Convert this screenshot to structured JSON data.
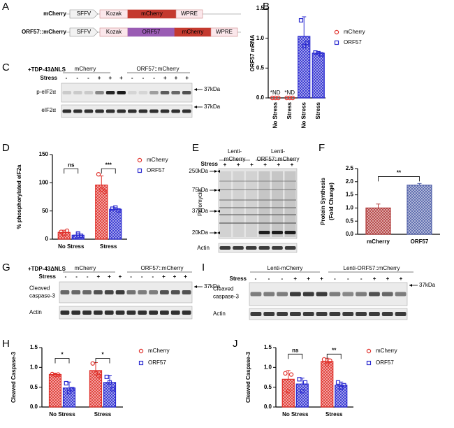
{
  "panel_A": {
    "label": "A",
    "constructs": [
      {
        "name": "mCherry",
        "elements": [
          "SFFV",
          "Kozak",
          "mCherry",
          "WPRE"
        ]
      },
      {
        "name": "ORF57::mCherry",
        "elements": [
          "SFFV",
          "Kozak",
          "ORF57",
          "mCherry",
          "WPRE"
        ]
      }
    ]
  },
  "panel_C": {
    "label": "C",
    "treatment": "+TDP-43ΔNLS",
    "stress_label": "Stress",
    "groups": [
      "mCherry",
      "ORF57::mCherry"
    ],
    "lanes": [
      "-",
      "-",
      "-",
      "+",
      "+",
      "+",
      "-",
      "-",
      "-",
      "+",
      "+",
      "+"
    ],
    "rows": [
      [
        "p-eIF2α"
      ],
      [
        "eIF2α"
      ]
    ],
    "markers": [
      "37kDa",
      "37kDa"
    ]
  },
  "panel_E": {
    "label": "E",
    "groups": [
      [
        "Lenti-",
        "mCherry"
      ],
      [
        "Lenti-",
        "ORF57::mCherry"
      ]
    ],
    "stress_label": "Stress",
    "lanes": [
      "+",
      "+",
      "+",
      "+",
      "+",
      "+"
    ],
    "ylabel": "Puromycin",
    "markers": [
      "250kDa",
      "75kDa",
      "37kDa",
      "20kDa"
    ],
    "rows": [
      [
        "Actin"
      ]
    ]
  },
  "panel_G": {
    "label": "G",
    "treatment": "+TDP-43ΔNLS",
    "stress_label": "Stress",
    "groups": [
      "mCherry",
      "ORF57::mCherry"
    ],
    "lanes": [
      "-",
      "-",
      "-",
      "+",
      "+",
      "+",
      "-",
      "-",
      "-",
      "+",
      "+",
      "+"
    ],
    "rows": [
      [
        "Cleaved",
        "caspase-3"
      ],
      [
        "Actin"
      ]
    ],
    "markers": [
      "37kDa"
    ]
  },
  "panel_I": {
    "label": "I",
    "stress_label": "Stress",
    "groups": [
      "Lenti-mCherry",
      "Lenti-ORF57::mCherry"
    ],
    "lanes": [
      "-",
      "-",
      "-",
      "+",
      "+",
      "+",
      "-",
      "-",
      "-",
      "+",
      "+",
      "+"
    ],
    "rows": [
      [
        "Cleaved",
        "caspase-3"
      ],
      [
        "Actin"
      ]
    ],
    "markers": [
      "37kDa"
    ]
  },
  "chart_data": [
    {
      "panel": "B",
      "type": "bar",
      "ylabel": "ORF57 mRNA",
      "ylim": [
        0,
        1.5
      ],
      "yticks": [
        {
          "value": 0,
          "label": "0.0"
        },
        0.5,
        {
          "value": 1,
          "label": "1.0"
        },
        1.5
      ],
      "categories": [
        "No Stress",
        "Stress",
        "No Stress",
        "Stress"
      ],
      "series": [
        {
          "name": "mCherry",
          "color": "#e0302a",
          "marker": "circle",
          "values": [
            0,
            0,
            null,
            null
          ],
          "points": [
            [
              0,
              0,
              0
            ],
            [
              0,
              0,
              0
            ],
            null,
            null
          ]
        },
        {
          "name": "ORF57",
          "color": "#2b2bd0",
          "marker": "square",
          "values": [
            null,
            null,
            1.03,
            0.75
          ],
          "errors": [
            null,
            null,
            0.33,
            0.02
          ],
          "points": [
            null,
            null,
            [
              1.3,
              0.87,
              0.92
            ],
            [
              0.76,
              0.75,
              0.73
            ]
          ]
        }
      ],
      "annotations": [
        "*ND",
        "*ND"
      ]
    },
    {
      "panel": "D",
      "type": "bar",
      "ylabel": "% phosphorylated eIF2a",
      "ylim": [
        0,
        150
      ],
      "yticks": [
        0,
        50,
        100,
        150
      ],
      "categories": [
        "No Stress",
        "Stress"
      ],
      "series": [
        {
          "name": "mCherry",
          "color": "#e0302a",
          "marker": "circle",
          "values": [
            12,
            96
          ],
          "errors": [
            4,
            16
          ],
          "points": [
            [
              13,
              9,
              15
            ],
            [
              115,
              88,
              84
            ]
          ]
        },
        {
          "name": "ORF57",
          "color": "#2b2bd0",
          "marker": "square",
          "values": [
            7,
            53
          ],
          "errors": [
            4,
            3
          ],
          "points": [
            [
              4,
              10,
              6
            ],
            [
              54,
              56,
              51
            ]
          ]
        }
      ],
      "significance": [
        "ns",
        "***"
      ]
    },
    {
      "panel": "F",
      "type": "bar",
      "ylabel": [
        "Protein Synthesis",
        "(Fold Change)"
      ],
      "ylim": [
        0,
        2.5
      ],
      "yticks": [
        {
          "value": 0,
          "label": "0.0"
        },
        0.5,
        {
          "value": 1,
          "label": "1.0"
        },
        1.5,
        {
          "value": 2,
          "label": "2.0"
        },
        2.5
      ],
      "categories": [
        "mCherry",
        "ORF57"
      ],
      "values": [
        1.0,
        1.87
      ],
      "errors": [
        0.15,
        0.06
      ],
      "colors": [
        "#b03a3a",
        "#4f5fa8"
      ],
      "significance": [
        "**"
      ]
    },
    {
      "panel": "H",
      "type": "bar",
      "ylabel": "Cleaved Caspase-3",
      "ylim": [
        0,
        1.5
      ],
      "yticks": [
        {
          "value": 0,
          "label": "0.0"
        },
        0.5,
        {
          "value": 1,
          "label": "1.0"
        },
        1.5
      ],
      "categories": [
        "No Stress",
        "Stress"
      ],
      "series": [
        {
          "name": "mCherry",
          "color": "#e0302a",
          "marker": "circle",
          "values": [
            0.82,
            0.92
          ],
          "errors": [
            0.02,
            0.2
          ],
          "points": [
            [
              0.83,
              0.81,
              0.82
            ],
            [
              1.1,
              0.85,
              0.78
            ]
          ]
        },
        {
          "name": "ORF57",
          "color": "#2b2bd0",
          "marker": "square",
          "values": [
            0.48,
            0.62
          ],
          "errors": [
            0.15,
            0.18
          ],
          "points": [
            [
              0.6,
              0.38,
              0.45
            ],
            [
              0.76,
              0.62,
              0.45
            ]
          ]
        }
      ],
      "significance": [
        "*",
        "*"
      ]
    },
    {
      "panel": "J",
      "type": "bar",
      "ylabel": "Cleaved Caspase-3",
      "ylim": [
        0,
        1.5
      ],
      "yticks": [
        {
          "value": 0,
          "label": "0.0"
        },
        0.5,
        {
          "value": 1,
          "label": "1.0"
        },
        1.5
      ],
      "categories": [
        "No Stress",
        "Stress"
      ],
      "series": [
        {
          "name": "mCherry",
          "color": "#e0302a",
          "marker": "circle",
          "values": [
            0.7,
            1.15
          ],
          "errors": [
            0.22,
            0.08
          ],
          "points": [
            [
              0.85,
              0.4,
              0.82
            ],
            [
              1.2,
              1.08,
              1.17
            ]
          ]
        },
        {
          "name": "ORF57",
          "color": "#2b2bd0",
          "marker": "square",
          "values": [
            0.58,
            0.55
          ],
          "errors": [
            0.15,
            0.08
          ],
          "points": [
            [
              0.7,
              0.4,
              0.62
            ],
            [
              0.62,
              0.48,
              0.55
            ]
          ]
        }
      ],
      "significance": [
        "ns",
        "**"
      ]
    }
  ]
}
